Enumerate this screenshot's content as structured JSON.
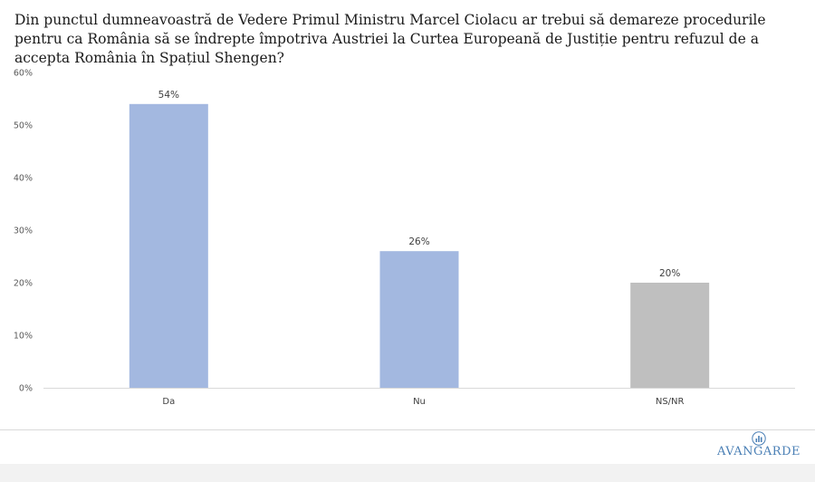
{
  "question": "Din punctul dumneavoastră de Vedere Primul Ministru Marcel Ciolacu ar trebui să demareze procedurile pentru ca România să se îndrepte împotriva Austriei la Curtea Europeană de Justiție pentru refuzul de a accepta România în Spațiul Shengen?",
  "logo": {
    "text": "AVANGARDE",
    "icon": "bar-chart-icon"
  },
  "chart_data": {
    "type": "bar",
    "categories": [
      "Da",
      "Nu",
      "NS/NR"
    ],
    "values": [
      54,
      26,
      20
    ],
    "data_labels": [
      "54%",
      "26%",
      "20%"
    ],
    "bar_colors": [
      "#a3b8e0",
      "#a3b8e0",
      "#bfbfbf"
    ],
    "ylim": [
      0,
      60
    ],
    "yticks": [
      0,
      10,
      20,
      30,
      40,
      50,
      60
    ],
    "ytick_labels": [
      "0%",
      "10%",
      "20%",
      "30%",
      "40%",
      "50%",
      "60%"
    ],
    "grid": false,
    "legend": "none"
  }
}
